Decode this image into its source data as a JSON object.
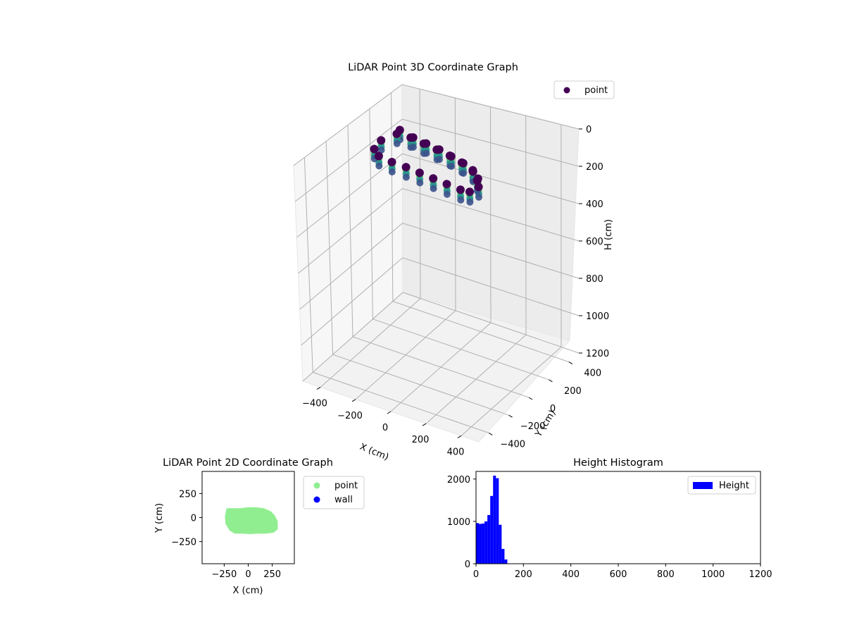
{
  "chart_data": [
    {
      "type": "scatter",
      "projection": "3d",
      "title": "LiDAR Point 3D Coordinate Graph",
      "xlabel": "X (cm)",
      "ylabel": "Y (cm)",
      "zlabel": "H (cm)",
      "xlim": [
        -500,
        500
      ],
      "ylim": [
        -500,
        500
      ],
      "zlim": [
        1200,
        0
      ],
      "xticks": [
        -400,
        -200,
        0,
        200,
        400
      ],
      "yticks": [
        -400,
        -200,
        0,
        200,
        400
      ],
      "zticks": [
        0,
        200,
        400,
        600,
        800,
        1000,
        1200
      ],
      "grid": true,
      "legend": {
        "placement": "top-right",
        "entries": [
          "point"
        ]
      },
      "colormap": "viridis",
      "series": [
        {
          "name": "point",
          "color": "#440154",
          "x": [
            -280,
            -200,
            -120,
            -40,
            40,
            120,
            200,
            260,
            300,
            280,
            240,
            160,
            80,
            0,
            -80,
            -160,
            -240,
            -290,
            -300,
            -260,
            -180,
            -100,
            -20,
            60,
            140,
            220,
            280
          ],
          "y": [
            120,
            90,
            80,
            70,
            60,
            40,
            10,
            -40,
            -100,
            -150,
            -170,
            -165,
            -160,
            -155,
            -150,
            -150,
            -140,
            -100,
            -20,
            60,
            80,
            70,
            60,
            40,
            20,
            -20,
            -80
          ],
          "h": [
            30,
            40,
            50,
            60,
            70,
            80,
            90,
            100,
            110,
            120,
            110,
            100,
            90,
            80,
            70,
            60,
            50,
            40,
            30,
            20,
            30,
            40,
            50,
            60,
            70,
            80,
            90
          ]
        }
      ]
    },
    {
      "type": "scatter",
      "title": "LiDAR Point 2D Coordinate Graph",
      "xlabel": "X (cm)",
      "ylabel": "Y (cm)",
      "xlim": [
        -480,
        480
      ],
      "ylim": [
        -480,
        480
      ],
      "xticks": [
        -250,
        0,
        250
      ],
      "yticks": [
        -250,
        0,
        250
      ],
      "legend": {
        "placement": "outside-right",
        "entries": [
          "point",
          "wall"
        ]
      },
      "series": [
        {
          "name": "point",
          "color": "#90ee90",
          "outline": {
            "x": [
              -220,
              -150,
              -80,
              0,
              80,
              160,
              230,
              270,
              300,
              300,
              260,
              180,
              100,
              20,
              -60,
              -140,
              -190,
              -230,
              -235,
              -220
            ],
            "y": [
              90,
              90,
              90,
              100,
              100,
              90,
              60,
              20,
              -40,
              -120,
              -150,
              -160,
              -160,
              -165,
              -160,
              -160,
              -130,
              -60,
              10,
              90
            ]
          }
        },
        {
          "name": "wall",
          "color": "#0000ff",
          "x": [],
          "y": []
        }
      ]
    },
    {
      "type": "bar",
      "title": "Height Histogram",
      "xlim": [
        0,
        1200
      ],
      "ylim": [
        0,
        2180
      ],
      "xticks": [
        0,
        200,
        400,
        600,
        800,
        1000,
        1200
      ],
      "yticks": [
        0,
        1000,
        2000
      ],
      "legend": {
        "placement": "top-right",
        "entries": [
          "Height"
        ]
      },
      "series": [
        {
          "name": "Height",
          "color": "#0000ff",
          "bin_edges": [
            0,
            12,
            24,
            36,
            48,
            60,
            72,
            84,
            96,
            108,
            120,
            132
          ],
          "counts": [
            960,
            940,
            950,
            1000,
            1150,
            1600,
            2080,
            2020,
            920,
            350,
            100
          ]
        }
      ]
    }
  ]
}
